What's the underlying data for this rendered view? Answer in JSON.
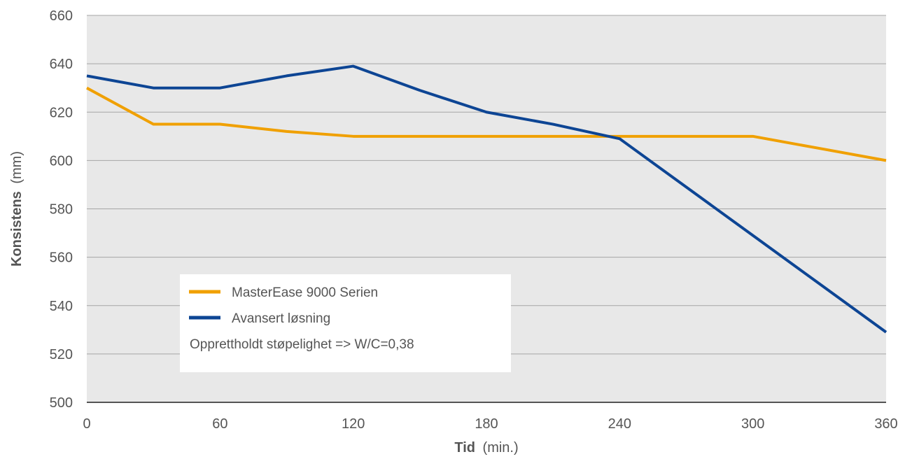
{
  "chart_data": {
    "type": "line",
    "x": [
      0,
      30,
      60,
      90,
      120,
      150,
      180,
      210,
      240,
      270,
      300,
      330,
      360
    ],
    "series": [
      {
        "name": "MasterEase 9000 Serien",
        "color": "#f0a000",
        "values": [
          630,
          615,
          615,
          612,
          610,
          610,
          610,
          610,
          610,
          610,
          610,
          605,
          600
        ]
      },
      {
        "name": "Avansert løsning",
        "color": "#0d4594",
        "values": [
          635,
          630,
          630,
          635,
          639,
          629,
          620,
          615,
          609,
          589,
          569,
          549,
          529
        ]
      }
    ],
    "xlabel_bold": "Tid",
    "xlabel_unit": "(min.)",
    "ylabel_bold": "Konsistens",
    "ylabel_unit": "(mm)",
    "xlim": [
      0,
      360
    ],
    "ylim": [
      500,
      660
    ],
    "x_ticks": [
      0,
      60,
      120,
      180,
      240,
      300,
      360
    ],
    "y_ticks": [
      500,
      520,
      540,
      560,
      580,
      600,
      620,
      640,
      660
    ],
    "grid": true,
    "plot_background": "#e8e8e8",
    "gridline_color": "#a6a6a6",
    "legend_placement": "bottom-left",
    "legend_note": "Opprettholdt støpelighet => W/C=0,38"
  }
}
